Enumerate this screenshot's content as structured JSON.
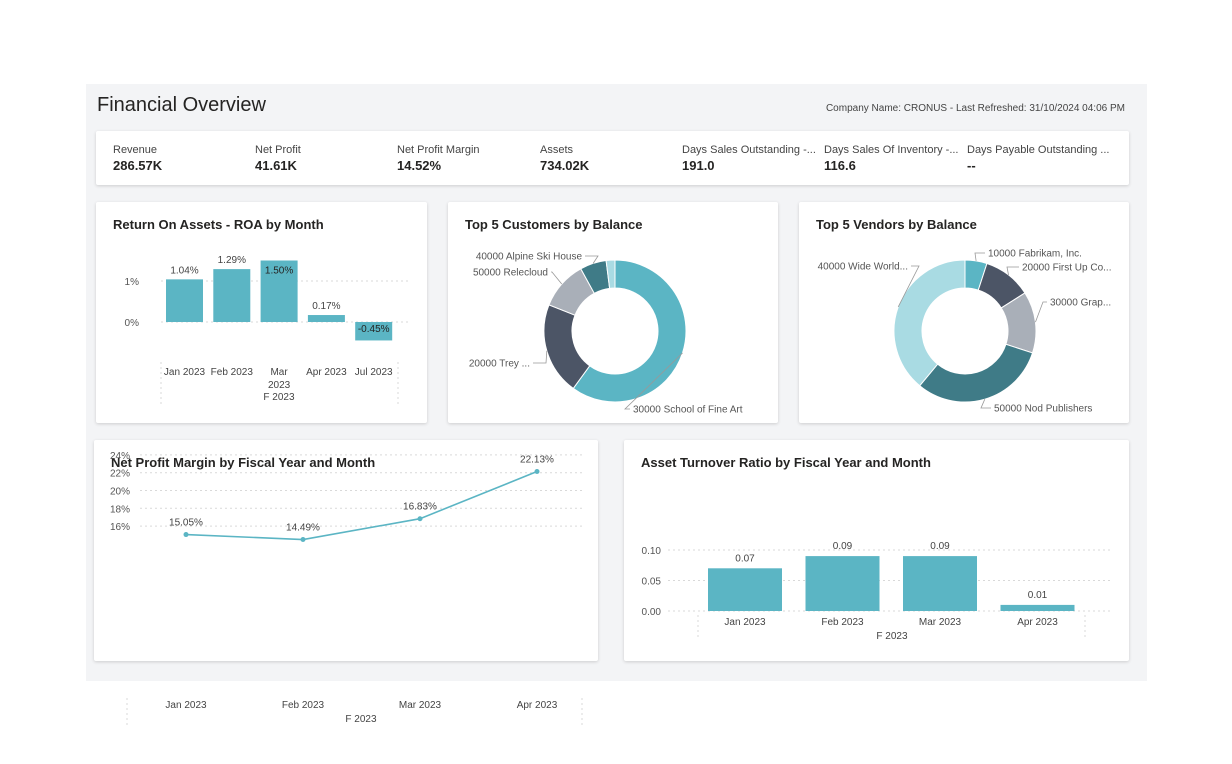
{
  "page": {
    "title": "Financial Overview",
    "meta": "Company Name: CRONUS - Last Refreshed: 31/10/2024 04:06 PM"
  },
  "colors": {
    "teal": "#5bb5c4",
    "dark_slate": "#4c5566",
    "gray": "#a9afb8",
    "dark_teal": "#3f7b87",
    "light_teal": "#a9dbe3",
    "grid": "#d9d9d9"
  },
  "kpis": [
    {
      "label": "Revenue",
      "value": "286.57K"
    },
    {
      "label": "Net Profit",
      "value": "41.61K"
    },
    {
      "label": "Net Profit Margin",
      "value": "14.52%"
    },
    {
      "label": "Assets",
      "value": "734.02K"
    },
    {
      "label": "Days Sales Outstanding -...",
      "value": "191.0"
    },
    {
      "label": "Days Sales Of Inventory -...",
      "value": "116.6"
    },
    {
      "label": "Days Payable Outstanding ...",
      "value": "--"
    }
  ],
  "chart_data": [
    {
      "id": "roa",
      "type": "bar",
      "title": "Return On Assets - ROA by Month",
      "categories": [
        "Jan 2023",
        "Feb 2023",
        "Mar 2023",
        "Apr 2023",
        "Jul 2023"
      ],
      "values": [
        1.04,
        1.29,
        1.5,
        0.17,
        -0.45
      ],
      "data_labels": [
        "1.04%",
        "1.29%",
        "1.50%",
        "0.17%",
        "-0.45%"
      ],
      "y_ticks": [
        "1%",
        "0%"
      ],
      "fiscal_label": "F 2023",
      "ylim": [
        -0.5,
        1.6
      ],
      "color": "#5bb5c4"
    },
    {
      "id": "customers",
      "type": "pie",
      "title": "Top 5 Customers by Balance",
      "series": [
        {
          "name": "30000 School of Fine Art",
          "value": 60,
          "color": "#5bb5c4"
        },
        {
          "name": "20000 Trey ...",
          "value": 21,
          "color": "#4c5566"
        },
        {
          "name": "50000 Relecloud",
          "value": 11,
          "color": "#a9afb8"
        },
        {
          "name": "40000 Alpine Ski House",
          "value": 6,
          "color": "#3f7b87"
        },
        {
          "name": "",
          "value": 2,
          "color": "#a9dbe3"
        }
      ]
    },
    {
      "id": "vendors",
      "type": "pie",
      "title": "Top 5 Vendors by Balance",
      "series": [
        {
          "name": "10000 Fabrikam, Inc.",
          "value": 5,
          "color": "#5bb5c4"
        },
        {
          "name": "20000 First Up Co...",
          "value": 11,
          "color": "#4c5566"
        },
        {
          "name": "30000 Grap...",
          "value": 14,
          "color": "#a9afb8"
        },
        {
          "name": "50000 Nod Publishers",
          "value": 31,
          "color": "#3f7b87"
        },
        {
          "name": "40000 Wide World...",
          "value": 39,
          "color": "#a9dbe3"
        }
      ]
    },
    {
      "id": "npm",
      "type": "line",
      "title": "Net Profit Margin by Fiscal Year and Month",
      "categories": [
        "Jan 2023",
        "Feb 2023",
        "Mar 2023",
        "Apr 2023"
      ],
      "values": [
        15.05,
        14.49,
        16.83,
        22.13
      ],
      "data_labels": [
        "15.05%",
        "14.49%",
        "16.83%",
        "22.13%"
      ],
      "y_ticks": [
        "24%",
        "22%",
        "20%",
        "18%",
        "16%"
      ],
      "fiscal_label": "F 2023",
      "color": "#5bb5c4"
    },
    {
      "id": "atr",
      "type": "bar",
      "title": "Asset Turnover Ratio by Fiscal Year and Month",
      "categories": [
        "Jan 2023",
        "Feb 2023",
        "Mar 2023",
        "Apr 2023"
      ],
      "values": [
        0.07,
        0.09,
        0.09,
        0.01
      ],
      "data_labels": [
        "0.07",
        "0.09",
        "0.09",
        "0.01"
      ],
      "y_ticks": [
        "0.10",
        "0.05",
        "0.00"
      ],
      "fiscal_label": "F 2023",
      "ylim": [
        0,
        0.1
      ],
      "color": "#5bb5c4"
    }
  ]
}
